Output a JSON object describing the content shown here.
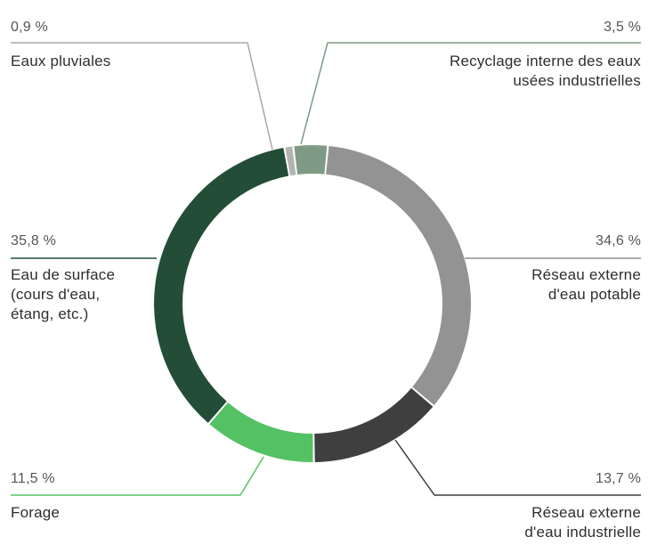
{
  "chart_data": {
    "type": "donut",
    "title": "",
    "unit": "%",
    "slices": [
      {
        "name": "Recyclage interne des eaux usées industrielles",
        "value": 3.5,
        "value_label": "3,5 %",
        "color": "#7e9a84",
        "line_color": "#7e9a84"
      },
      {
        "name": "Réseau externe d'eau potable",
        "value": 34.6,
        "value_label": "34,6 %",
        "color": "#939393",
        "line_color": "#8f8f8f"
      },
      {
        "name": "Réseau externe d'eau industrielle",
        "value": 13.7,
        "value_label": "13,7 %",
        "color": "#3f3f3f",
        "line_color": "#3f3f3f"
      },
      {
        "name": "Forage",
        "value": 11.5,
        "value_label": "11,5 %",
        "color": "#55c165",
        "line_color": "#55c165"
      },
      {
        "name": "Eau de surface (cours d'eau, étang, etc.)",
        "value": 35.8,
        "value_label": "35,8 %",
        "color": "#234d37",
        "line_color": "#234d37"
      },
      {
        "name": "Eaux pluviales",
        "value": 0.9,
        "value_label": "0,9 %",
        "color": "#b3b3b3",
        "line_color": "#a8a8a8"
      }
    ]
  },
  "labels": {
    "recyclage": {
      "pct": "3,5 %",
      "line1": "Recyclage interne des eaux",
      "line2": "usées industrielles"
    },
    "potable": {
      "pct": "34,6 %",
      "line1": "Réseau externe",
      "line2": "d'eau potable"
    },
    "industrielle": {
      "pct": "13,7 %",
      "line1": "Réseau externe",
      "line2": "d'eau industrielle"
    },
    "forage": {
      "pct": "11,5 %",
      "line1": "Forage"
    },
    "surface": {
      "pct": "35,8 %",
      "line1": "Eau de surface",
      "line2": "(cours d'eau,",
      "line3": "étang, etc.)"
    },
    "pluviales": {
      "pct": "0,9 %",
      "line1": "Eaux pluviales"
    }
  }
}
